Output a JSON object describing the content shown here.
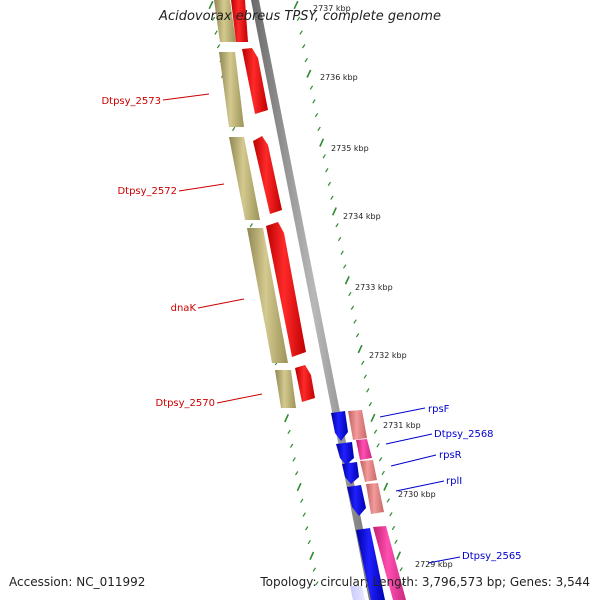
{
  "title": "Acidovorax ebreus TPSY, complete genome",
  "footer": {
    "accession": "Accession: NC_011992",
    "stats": "Topology: circular; Length: 3,796,573 bp; Genes: 3,544"
  },
  "colors": {
    "cds_forward": "#ff0000",
    "cds_reverse": "#c8bd78",
    "cds_blue": "#0000ff",
    "cds_magenta": "#ff3fa6",
    "cds_pink": "#ee8080",
    "backbone": "#8a8a8a",
    "tick": "#2e8b2e",
    "label_red": "#cc0000",
    "label_blue": "#0000cc"
  },
  "ticks": [
    "2737 kbp",
    "2736 kbp",
    "2735 kbp",
    "2734 kbp",
    "2733 kbp",
    "2732 kbp",
    "2731 kbp",
    "2730 kbp",
    "2729 kbp"
  ],
  "gene_labels": [
    {
      "text": "Dtpsy_2573",
      "color": "red"
    },
    {
      "text": "Dtpsy_2572",
      "color": "red"
    },
    {
      "text": "dnaK",
      "color": "red"
    },
    {
      "text": "Dtpsy_2570",
      "color": "red"
    },
    {
      "text": "rpsF",
      "color": "blue"
    },
    {
      "text": "Dtpsy_2568",
      "color": "blue"
    },
    {
      "text": "rpsR",
      "color": "blue"
    },
    {
      "text": "rplI",
      "color": "blue"
    },
    {
      "text": "Dtpsy_2565",
      "color": "blue"
    }
  ]
}
